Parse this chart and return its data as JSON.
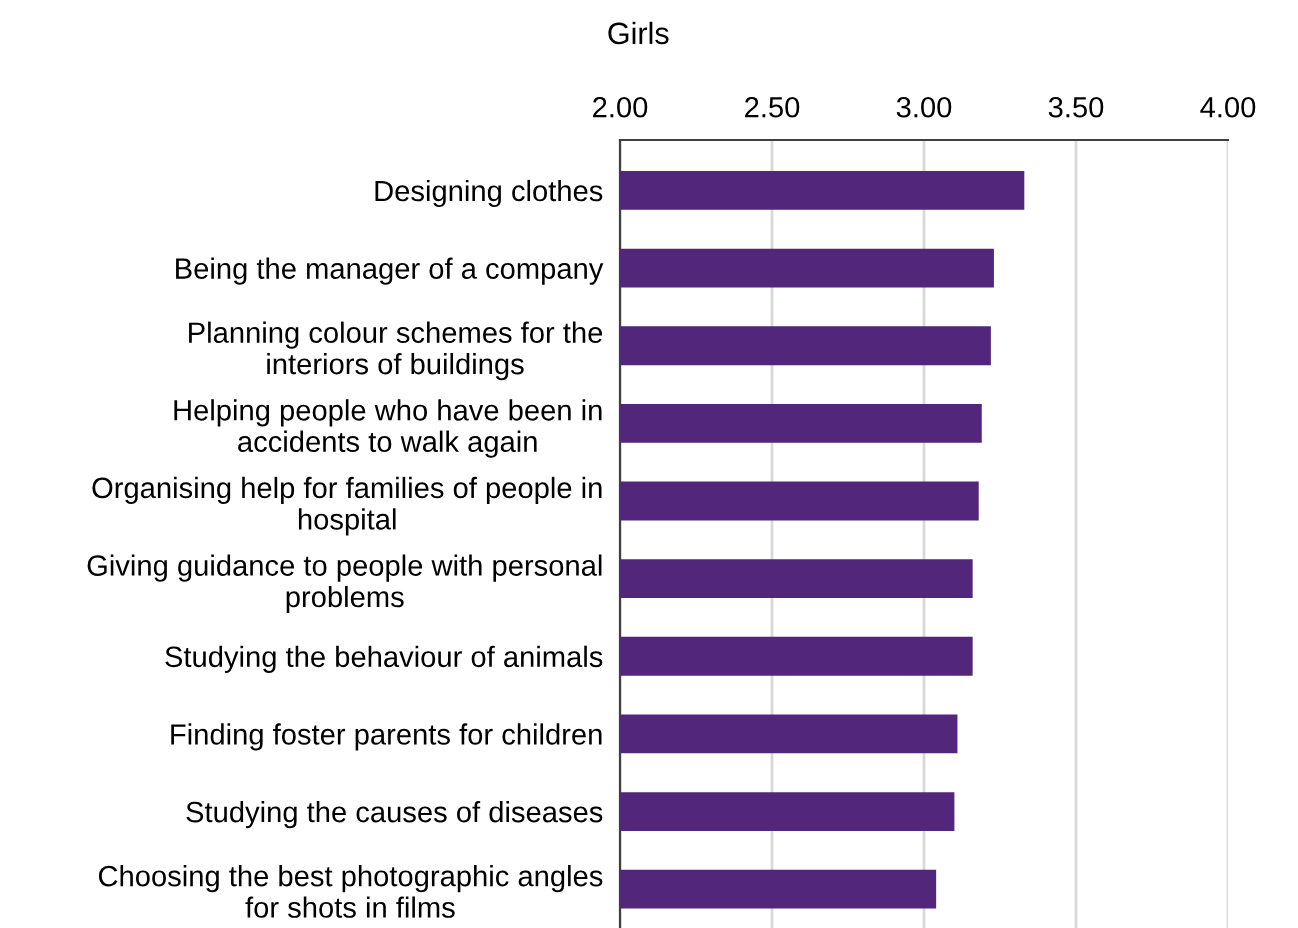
{
  "chart_data": {
    "type": "bar",
    "orientation": "horizontal",
    "title": "Girls",
    "categories": [
      "Designing clothes",
      "Being the manager of a company",
      "Planning colour schemes for the\ninteriors of buildings",
      "Helping people who have been in\naccidents to walk again",
      "Organising help for families of people in\nhospital",
      "Giving guidance to people with personal\nproblems",
      "Studying the behaviour of animals",
      "Finding foster parents for children",
      "Studying the causes of diseases",
      "Choosing the best photographic angles\nfor shots in films"
    ],
    "values": [
      3.33,
      3.23,
      3.22,
      3.19,
      3.18,
      3.16,
      3.16,
      3.11,
      3.1,
      3.04
    ],
    "color": "#52267a",
    "xlim": [
      2.0,
      4.0
    ],
    "xticks": [
      {
        "value": 2.0,
        "label": "2.00"
      },
      {
        "value": 2.5,
        "label": "2.50"
      },
      {
        "value": 3.0,
        "label": "3.00"
      },
      {
        "value": 3.5,
        "label": "3.50"
      },
      {
        "value": 4.0,
        "label": "4.00"
      }
    ],
    "grid": "x"
  }
}
